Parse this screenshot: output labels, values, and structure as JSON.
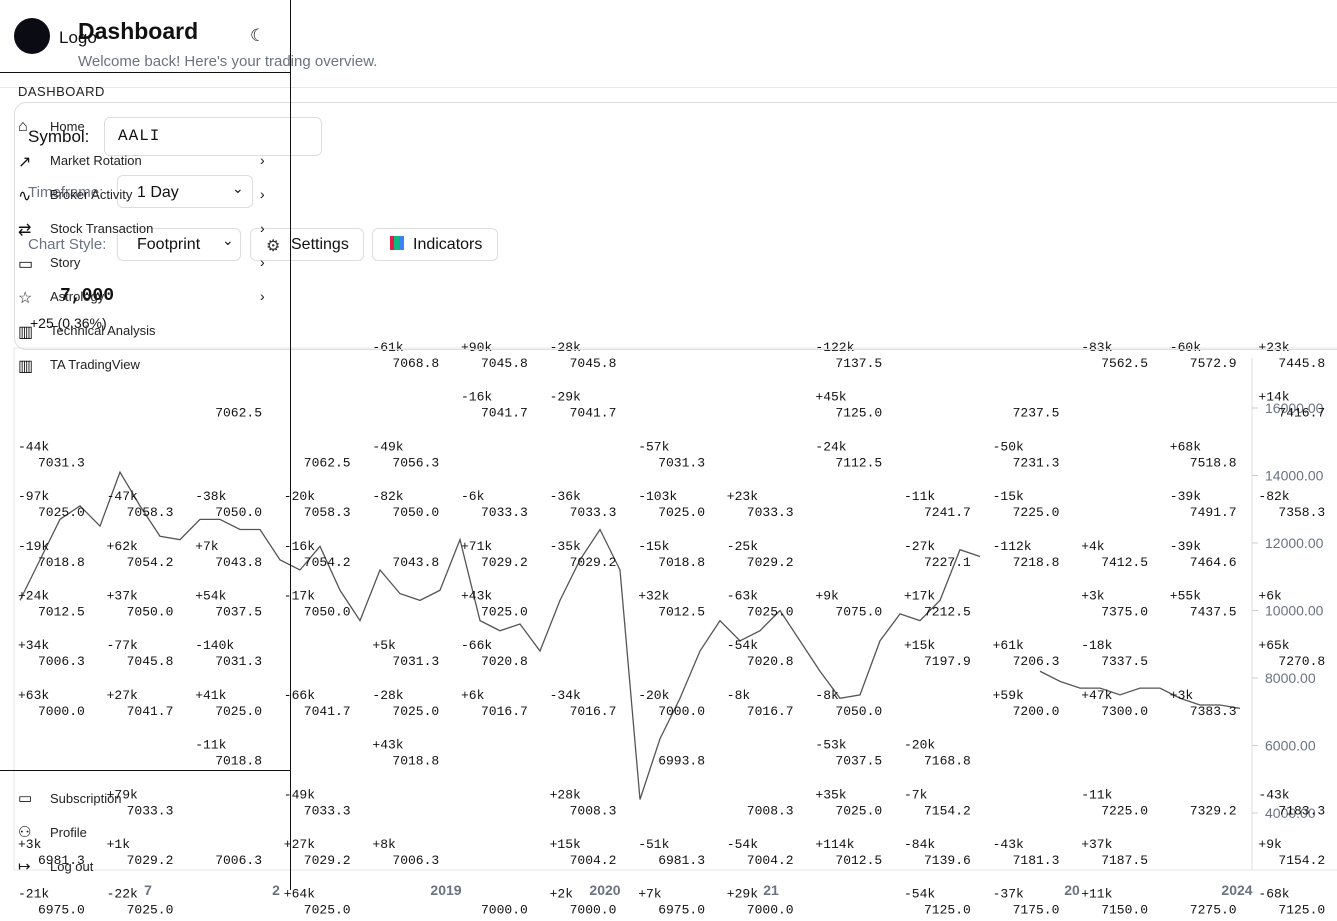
{
  "sidebar": {
    "logo": "Logo",
    "section": "DASHBOARD",
    "items": [
      "Home",
      "Market Rotation",
      "Broker Activity",
      "Stock Transaction",
      "Story",
      "Astrology",
      "Technical Analysis",
      "TA TradingView"
    ],
    "bottom": [
      "Subscription",
      "Profile",
      "Log out"
    ]
  },
  "header": {
    "title": "Dashboard",
    "subtitle": "Welcome back! Here's your trading overview."
  },
  "controls": {
    "symbol_label": "Symbol:",
    "symbol_value": "AALI",
    "timeframe_label": "Timeframe:",
    "timeframe_value": "1 Day",
    "style_label": "Chart Style:",
    "style_value": "Footprint",
    "settings": "Settings",
    "indicators": "Indicators"
  },
  "quote": {
    "price": "7,000",
    "change": "+25 (0.36%)"
  },
  "chart": {
    "ylim": [
      4000,
      16000
    ],
    "yticks": [
      {
        "value": 4000,
        "label": "4000.00"
      },
      {
        "value": 6000,
        "label": "6000.00"
      },
      {
        "value": 8000,
        "label": "8000.00"
      },
      {
        "value": 10000,
        "label": "10000.00"
      },
      {
        "value": 12000,
        "label": "12000.00"
      },
      {
        "value": 14000,
        "label": "14000.00"
      },
      {
        "value": 16000,
        "label": "16000.00"
      }
    ],
    "xlabels": [
      "7",
      "2",
      "2019",
      "2020",
      "21",
      "20",
      "2024"
    ],
    "price_line": [
      10300,
      11500,
      12700,
      13100,
      12500,
      14100,
      13100,
      12200,
      12100,
      12700,
      12700,
      12400,
      12400,
      11500,
      11200,
      11900,
      10600,
      9700,
      11200,
      10500,
      10300,
      10600,
      12100,
      9700,
      9400,
      9600,
      8800,
      10300,
      11500,
      12400,
      11200,
      4400,
      6200,
      7400,
      8800,
      9700,
      9100,
      9400,
      10000,
      9100,
      8200,
      7400,
      7500,
      9100,
      9900,
      9700,
      10300,
      11800,
      11600,
      null,
      null,
      8200,
      7900,
      7700,
      7700,
      7500,
      7700,
      7700,
      7400,
      7200,
      7200,
      7100
    ],
    "footprint": [
      [
        null,
        null,
        null,
        null,
        {
          "d": "-61k",
          "p": "7068.8"
        },
        {
          "d": "+90k",
          "p": "7045.8"
        },
        {
          "d": "-28k",
          "p": "7045.8"
        },
        null,
        null,
        {
          "d": "-122k",
          "p": "7137.5"
        },
        null,
        null,
        {
          "d": "-83k",
          "p": "7562.5"
        },
        {
          "d": "-60k",
          "p": "7572.9"
        },
        {
          "d": "+23k",
          "p": "7445.8"
        }
      ],
      [
        null,
        null,
        {
          "p": "7062.5"
        },
        null,
        null,
        {
          "d": "-16k",
          "p": "7041.7"
        },
        {
          "d": "-29k",
          "p": "7041.7"
        },
        null,
        null,
        {
          "d": "+45k",
          "p": "7125.0"
        },
        null,
        {
          "p": "7237.5"
        },
        null,
        null,
        {
          "d": "+14k",
          "p": "7416.7"
        }
      ],
      [
        {
          "d": "-44k",
          "p": "7031.3"
        },
        null,
        null,
        {
          "p": "7062.5"
        },
        {
          "d": "-49k",
          "p": "7056.3"
        },
        null,
        null,
        {
          "d": "-57k",
          "p": "7031.3"
        },
        null,
        {
          "d": "-24k",
          "p": "7112.5"
        },
        null,
        {
          "d": "-50k",
          "p": "7231.3"
        },
        null,
        {
          "d": "+68k",
          "p": "7518.8"
        },
        null
      ],
      [
        {
          "d": "-97k",
          "p": "7025.0"
        },
        {
          "d": "-47k",
          "p": "7058.3"
        },
        {
          "d": "-38k",
          "p": "7050.0"
        },
        {
          "d": "-20k",
          "p": "7058.3"
        },
        {
          "d": "-82k",
          "p": "7050.0"
        },
        {
          "d": "-6k",
          "p": "7033.3"
        },
        {
          "d": "-36k",
          "p": "7033.3"
        },
        {
          "d": "-103k",
          "p": "7025.0"
        },
        {
          "d": "+23k",
          "p": "7033.3"
        },
        null,
        {
          "d": "-11k",
          "p": "7241.7"
        },
        {
          "d": "-15k",
          "p": "7225.0"
        },
        null,
        {
          "d": "-39k",
          "p": "7491.7"
        },
        {
          "d": "-82k",
          "p": "7358.3"
        }
      ],
      [
        {
          "d": "-19k",
          "p": "7018.8"
        },
        {
          "d": "+62k",
          "p": "7054.2"
        },
        {
          "d": "+7k",
          "p": "7043.8"
        },
        {
          "d": "-16k",
          "p": "7054.2"
        },
        {
          "p": "7043.8"
        },
        {
          "d": "+71k",
          "p": "7029.2"
        },
        {
          "d": "-35k",
          "p": "7029.2"
        },
        {
          "d": "-15k",
          "p": "7018.8"
        },
        {
          "d": "-25k",
          "p": "7029.2"
        },
        null,
        {
          "d": "-27k",
          "p": "7227.1"
        },
        {
          "d": "-112k",
          "p": "7218.8"
        },
        {
          "d": "+4k",
          "p": "7412.5"
        },
        {
          "d": "-39k",
          "p": "7464.6"
        },
        null
      ],
      [
        {
          "d": "+24k",
          "p": "7012.5"
        },
        {
          "d": "+37k",
          "p": "7050.0"
        },
        {
          "d": "+54k",
          "p": "7037.5"
        },
        {
          "d": "-17k",
          "p": "7050.0"
        },
        null,
        {
          "d": "+43k",
          "p": "7025.0"
        },
        null,
        {
          "d": "+32k",
          "p": "7012.5"
        },
        {
          "d": "-63k",
          "p": "7025.0"
        },
        {
          "d": "+9k",
          "p": "7075.0"
        },
        {
          "d": "+17k",
          "p": "7212.5"
        },
        null,
        {
          "d": "+3k",
          "p": "7375.0"
        },
        {
          "d": "+55k",
          "p": "7437.5"
        },
        {
          "d": "+6k"
        }
      ],
      [
        {
          "d": "+34k",
          "p": "7006.3"
        },
        {
          "d": "-77k",
          "p": "7045.8"
        },
        {
          "d": "-140k",
          "p": "7031.3"
        },
        null,
        {
          "d": "+5k",
          "p": "7031.3"
        },
        {
          "d": "-66k",
          "p": "7020.8"
        },
        null,
        null,
        {
          "d": "-54k",
          "p": "7020.8"
        },
        null,
        {
          "d": "+15k",
          "p": "7197.9"
        },
        {
          "d": "+61k",
          "p": "7206.3"
        },
        {
          "d": "-18k",
          "p": "7337.5"
        },
        null,
        {
          "d": "+65k",
          "p": "7270.8"
        }
      ],
      [
        {
          "d": "+63k",
          "p": "7000.0"
        },
        {
          "d": "+27k",
          "p": "7041.7"
        },
        {
          "d": "+41k",
          "p": "7025.0"
        },
        {
          "d": "-66k",
          "p": "7041.7"
        },
        {
          "d": "-28k",
          "p": "7025.0"
        },
        {
          "d": "+6k",
          "p": "7016.7"
        },
        {
          "d": "-34k",
          "p": "7016.7"
        },
        {
          "d": "-20k",
          "p": "7000.0"
        },
        {
          "d": "-8k",
          "p": "7016.7"
        },
        {
          "d": "-8k",
          "p": "7050.0"
        },
        null,
        {
          "d": "+59k",
          "p": "7200.0"
        },
        {
          "d": "+47k",
          "p": "7300.0"
        },
        {
          "d": "+3k",
          "p": "7383.3"
        },
        null
      ],
      [
        null,
        null,
        {
          "d": "-11k",
          "p": "7018.8"
        },
        null,
        {
          "d": "+43k",
          "p": "7018.8"
        },
        null,
        null,
        {
          "p": "6993.8"
        },
        null,
        {
          "d": "-53k",
          "p": "7037.5"
        },
        {
          "d": "-20k",
          "p": "7168.8"
        },
        null,
        null,
        null,
        null
      ],
      [
        null,
        {
          "d": "+79k",
          "p": "7033.3"
        },
        null,
        {
          "d": "-49k",
          "p": "7033.3"
        },
        null,
        null,
        {
          "d": "+28k",
          "p": "7008.3"
        },
        null,
        {
          "p": "7008.3"
        },
        {
          "d": "+35k",
          "p": "7025.0"
        },
        {
          "d": "-7k",
          "p": "7154.2"
        },
        null,
        {
          "d": "-11k",
          "p": "7225.0"
        },
        {
          "p": "7329.2"
        },
        {
          "d": "-43k",
          "p": "7183.3"
        }
      ],
      [
        {
          "d": "+3k",
          "p": "6981.3"
        },
        {
          "d": "+1k",
          "p": "7029.2"
        },
        {
          "p": "7006.3"
        },
        {
          "d": "+27k",
          "p": "7029.2"
        },
        {
          "d": "+8k",
          "p": "7006.3"
        },
        null,
        {
          "d": "+15k",
          "p": "7004.2"
        },
        {
          "d": "-51k",
          "p": "6981.3"
        },
        {
          "d": "-54k",
          "p": "7004.2"
        },
        {
          "d": "+114k",
          "p": "7012.5"
        },
        {
          "d": "-84k",
          "p": "7139.6"
        },
        {
          "d": "-43k",
          "p": "7181.3"
        },
        {
          "d": "+37k",
          "p": "7187.5"
        },
        null,
        {
          "d": "+9k",
          "p": "7154.2"
        }
      ],
      [
        {
          "d": "-21k",
          "p": "6975.0"
        },
        {
          "d": "-22k",
          "p": "7025.0"
        },
        null,
        {
          "d": "+64k",
          "p": "7025.0"
        },
        null,
        {
          "p": "7000.0"
        },
        {
          "d": "+2k",
          "p": "7000.0"
        },
        {
          "d": "+7k",
          "p": "6975.0"
        },
        {
          "d": "+29k",
          "p": "7000.0"
        },
        null,
        {
          "d": "-54k",
          "p": "7125.0"
        },
        {
          "d": "-37k",
          "p": "7175.0"
        },
        {
          "d": "+11k",
          "p": "7150.0"
        },
        {
          "p": "7275.0"
        },
        {
          "d": "-68k",
          "p": "7125.0"
        }
      ]
    ]
  }
}
